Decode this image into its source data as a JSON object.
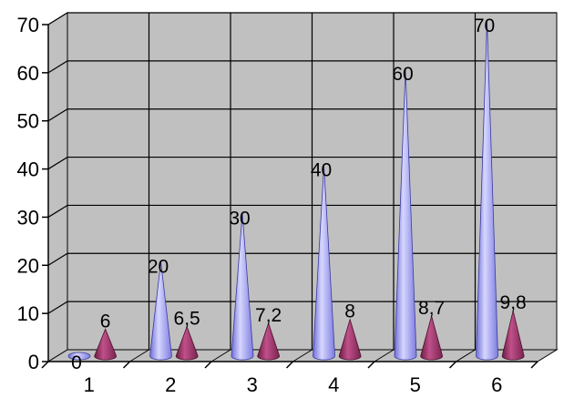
{
  "chart_data": {
    "type": "bar",
    "style": "3d-cone",
    "categories": [
      "1",
      "2",
      "3",
      "4",
      "5",
      "6"
    ],
    "series": [
      {
        "values": [
          0,
          20,
          30,
          40,
          60,
          70
        ],
        "labels": [
          "0",
          "20",
          "30",
          "40",
          "60",
          "70"
        ],
        "color": "#9999ff"
      },
      {
        "values": [
          6,
          6.5,
          7.2,
          8,
          8.7,
          9.8
        ],
        "labels": [
          "6",
          "6,5",
          "7,2",
          "8",
          "8,7",
          "9,8"
        ],
        "color": "#993366"
      }
    ],
    "ylim": [
      0,
      70
    ],
    "yticks": [
      "0",
      "10",
      "20",
      "30",
      "40",
      "50",
      "60",
      "70"
    ],
    "title": "",
    "xlabel": "",
    "ylabel": "",
    "grid": true,
    "legend": "none",
    "colors": {
      "wall": "#c0c0c0",
      "floor": "#c0c0c0",
      "grid": "#000000"
    }
  }
}
